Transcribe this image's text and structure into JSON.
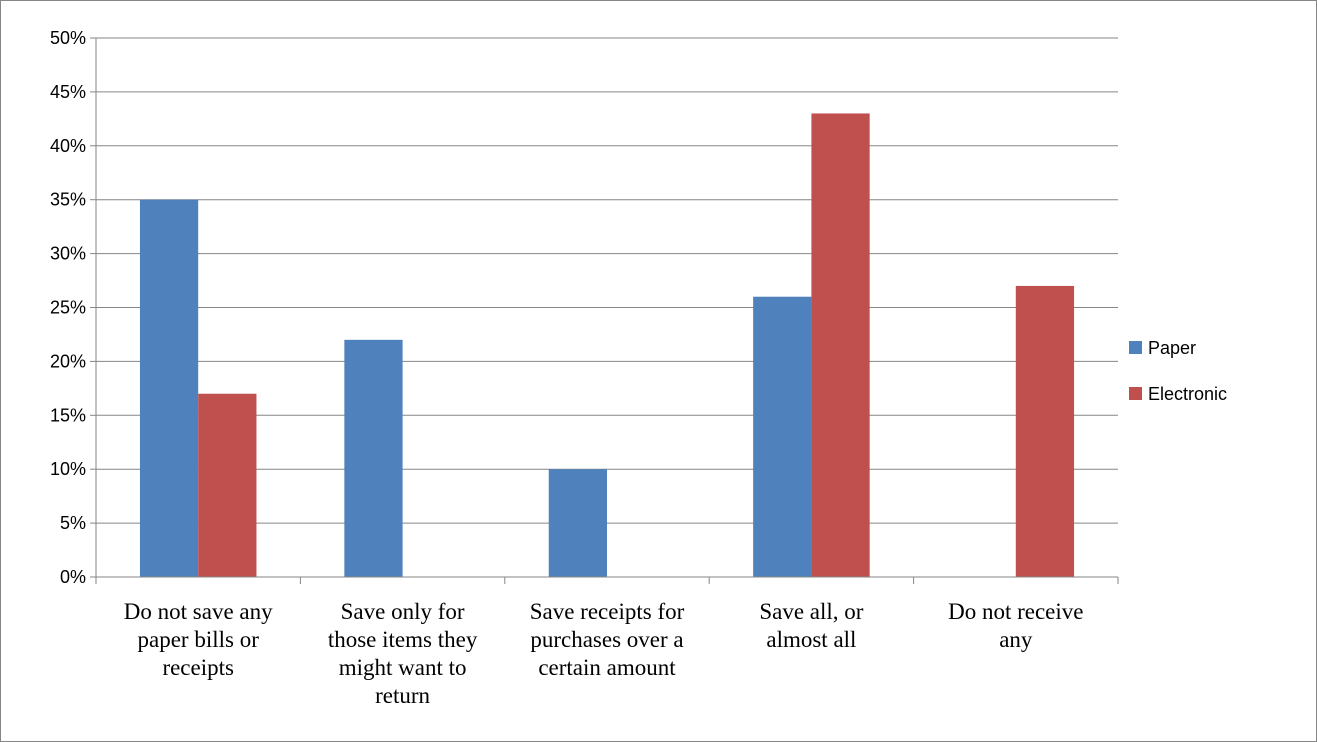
{
  "chart_data": {
    "type": "bar",
    "categories": [
      [
        "Do not save any",
        "paper bills or",
        "receipts"
      ],
      [
        "Save only for",
        "those items they",
        "might want to",
        "return"
      ],
      [
        "Save receipts for",
        "purchases over a",
        "certain amount"
      ],
      [
        "Save all, or",
        "almost all"
      ],
      [
        "Do not receive",
        "any"
      ]
    ],
    "series": [
      {
        "name": "Paper",
        "color": "#4F81BD",
        "values": [
          35,
          22,
          10,
          26,
          null
        ]
      },
      {
        "name": "Electronic",
        "color": "#C0504D",
        "values": [
          17,
          null,
          null,
          43,
          27
        ]
      }
    ],
    "ylim": [
      0,
      50
    ],
    "yticks": [
      0,
      5,
      10,
      15,
      20,
      25,
      30,
      35,
      40,
      45,
      50
    ],
    "ytick_labels": [
      "0%",
      "5%",
      "10%",
      "15%",
      "20%",
      "25%",
      "30%",
      "35%",
      "40%",
      "45%",
      "50%"
    ],
    "grid": true,
    "legend_position": "right",
    "gridline_color": "#868686"
  }
}
